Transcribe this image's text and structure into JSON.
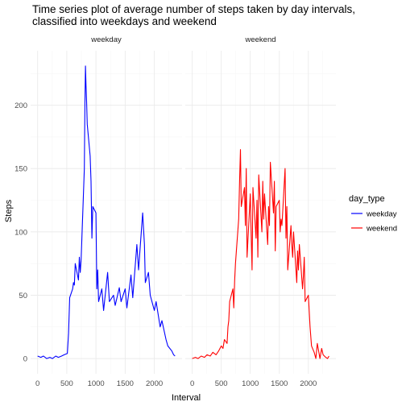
{
  "chart_data": {
    "type": "line",
    "title_lines": [
      "Time series plot of average number of steps taken by day intervals,",
      "classified into weekdays and weekend"
    ],
    "xlabel": "Interval",
    "ylabel": "Steps",
    "xlim": [
      -120,
      2475
    ],
    "ylim": [
      -12,
      243
    ],
    "x_ticks": [
      0,
      500,
      1000,
      1500,
      2000
    ],
    "x_tick_labels": [
      "0",
      "500",
      "1000",
      "1500",
      "2000"
    ],
    "y_ticks": [
      0,
      50,
      100,
      150,
      200
    ],
    "y_tick_labels": [
      "0",
      "50",
      "100",
      "150",
      "200"
    ],
    "grid": true,
    "legend": {
      "title": "day_type",
      "placement": "right",
      "entries": [
        {
          "label": "weekday",
          "color": "#0000ff"
        },
        {
          "label": "weekend",
          "color": "#ff0000"
        }
      ]
    },
    "panels": [
      {
        "label": "weekday",
        "series": "weekday",
        "color": "#0000ff",
        "x": [
          0,
          55,
          100,
          155,
          210,
          255,
          310,
          355,
          410,
          455,
          510,
          530,
          550,
          600,
          615,
          630,
          645,
          700,
          715,
          730,
          745,
          800,
          810,
          820,
          830,
          840,
          850,
          900,
          915,
          930,
          945,
          1000,
          1015,
          1030,
          1045,
          1100,
          1130,
          1200,
          1230,
          1300,
          1330,
          1400,
          1430,
          1500,
          1530,
          1600,
          1630,
          1700,
          1730,
          1800,
          1830,
          1845,
          1900,
          1930,
          2000,
          2030,
          2100,
          2130,
          2200,
          2230,
          2300,
          2330,
          2355
        ],
        "values": [
          2,
          1,
          2,
          0,
          1,
          0,
          2,
          1,
          2,
          3,
          4,
          20,
          48,
          55,
          60,
          58,
          75,
          62,
          80,
          68,
          78,
          150,
          200,
          231,
          215,
          203,
          185,
          160,
          140,
          95,
          120,
          115,
          55,
          70,
          45,
          55,
          38,
          68,
          45,
          50,
          42,
          56,
          45,
          55,
          40,
          66,
          48,
          90,
          70,
          115,
          90,
          60,
          68,
          50,
          38,
          45,
          25,
          30,
          15,
          10,
          6,
          3,
          2
        ]
      },
      {
        "label": "weekend",
        "series": "weekend",
        "color": "#ff0000",
        "x": [
          0,
          55,
          100,
          155,
          210,
          255,
          310,
          355,
          410,
          455,
          500,
          530,
          555,
          600,
          615,
          630,
          645,
          700,
          715,
          730,
          745,
          800,
          815,
          830,
          845,
          900,
          915,
          930,
          945,
          1000,
          1015,
          1030,
          1045,
          1100,
          1115,
          1130,
          1145,
          1200,
          1215,
          1230,
          1245,
          1300,
          1315,
          1330,
          1345,
          1400,
          1415,
          1430,
          1445,
          1500,
          1515,
          1530,
          1545,
          1600,
          1615,
          1630,
          1645,
          1700,
          1715,
          1730,
          1745,
          1800,
          1815,
          1830,
          1845,
          1900,
          1915,
          1930,
          1945,
          2000,
          2030,
          2055,
          2100,
          2130,
          2155,
          2200,
          2230,
          2255,
          2300,
          2330,
          2355
        ],
        "values": [
          0,
          1,
          0,
          2,
          1,
          3,
          2,
          5,
          3,
          6,
          10,
          8,
          15,
          12,
          25,
          30,
          45,
          55,
          40,
          62,
          75,
          110,
          140,
          165,
          120,
          135,
          105,
          150,
          80,
          130,
          100,
          70,
          135,
          95,
          125,
          80,
          145,
          100,
          140,
          110,
          130,
          90,
          120,
          105,
          155,
          115,
          140,
          85,
          120,
          125,
          100,
          110,
          105,
          150,
          95,
          120,
          70,
          105,
          90,
          80,
          100,
          60,
          85,
          70,
          90,
          55,
          65,
          80,
          45,
          50,
          25,
          10,
          5,
          0,
          12,
          0,
          8,
          3,
          1,
          0,
          2
        ]
      }
    ]
  }
}
